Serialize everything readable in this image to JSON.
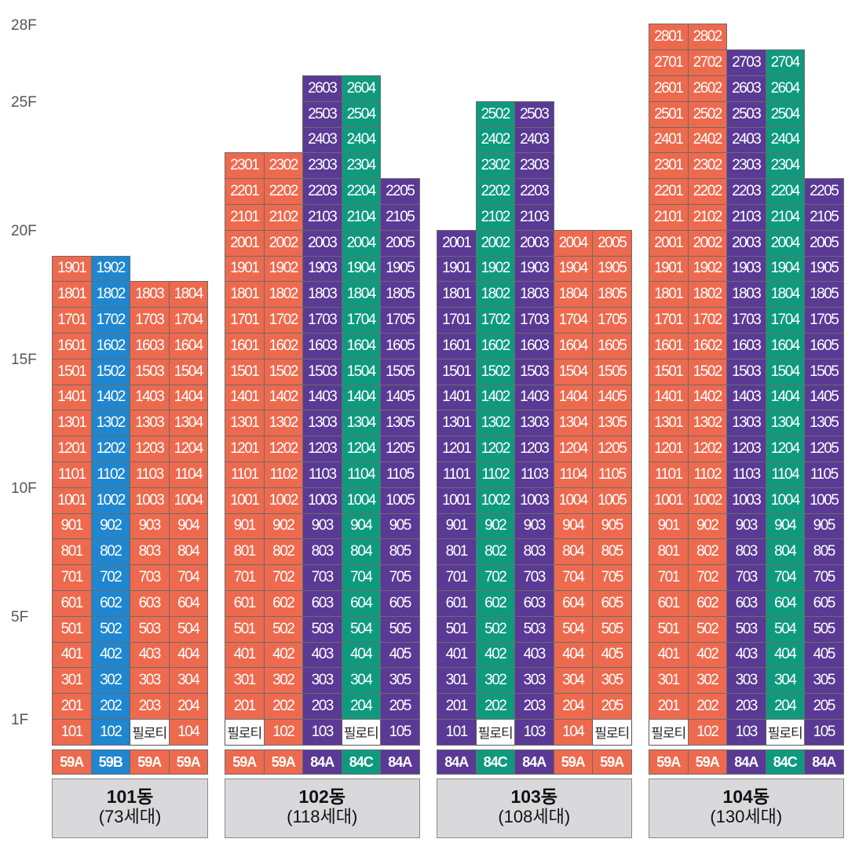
{
  "colors": {
    "59A": "#ee6a4e",
    "59B": "#1f86cf",
    "84A": "#5a3a94",
    "84C": "#0f9a7e",
    "pilotis": "#ffffff"
  },
  "pilotis_label": "필로티",
  "floor_labels": [
    "1F",
    "5F",
    "10F",
    "15F",
    "20F",
    "25F",
    "28F"
  ],
  "buildings": [
    {
      "name": "101동",
      "households": "(73세대)",
      "columns": [
        {
          "line": 1,
          "type": "59A",
          "top_floor": 19,
          "pilotis": false
        },
        {
          "line": 2,
          "type": "59B",
          "top_floor": 19,
          "pilotis": false
        },
        {
          "line": 3,
          "type": "59A",
          "top_floor": 18,
          "pilotis": true
        },
        {
          "line": 4,
          "type": "59A",
          "top_floor": 18,
          "pilotis": false
        }
      ]
    },
    {
      "name": "102동",
      "households": "(118세대)",
      "columns": [
        {
          "line": 1,
          "type": "59A",
          "top_floor": 23,
          "pilotis": true
        },
        {
          "line": 2,
          "type": "59A",
          "top_floor": 23,
          "pilotis": false
        },
        {
          "line": 3,
          "type": "84A",
          "top_floor": 26,
          "pilotis": false
        },
        {
          "line": 4,
          "type": "84C",
          "top_floor": 26,
          "pilotis": true
        },
        {
          "line": 5,
          "type": "84A",
          "top_floor": 22,
          "pilotis": false
        }
      ]
    },
    {
      "name": "103동",
      "households": "(108세대)",
      "columns": [
        {
          "line": 1,
          "type": "84A",
          "top_floor": 20,
          "pilotis": false
        },
        {
          "line": 2,
          "type": "84C",
          "top_floor": 25,
          "pilotis": true
        },
        {
          "line": 3,
          "type": "84A",
          "top_floor": 25,
          "pilotis": false
        },
        {
          "line": 4,
          "type": "59A",
          "top_floor": 20,
          "pilotis": false
        },
        {
          "line": 5,
          "type": "59A",
          "top_floor": 20,
          "pilotis": true
        }
      ]
    },
    {
      "name": "104동",
      "households": "(130세대)",
      "columns": [
        {
          "line": 1,
          "type": "59A",
          "top_floor": 28,
          "pilotis": true
        },
        {
          "line": 2,
          "type": "59A",
          "top_floor": 28,
          "pilotis": false
        },
        {
          "line": 3,
          "type": "84A",
          "top_floor": 27,
          "pilotis": false
        },
        {
          "line": 4,
          "type": "84C",
          "top_floor": 27,
          "pilotis": true
        },
        {
          "line": 5,
          "type": "84A",
          "top_floor": 22,
          "pilotis": false
        }
      ]
    }
  ]
}
